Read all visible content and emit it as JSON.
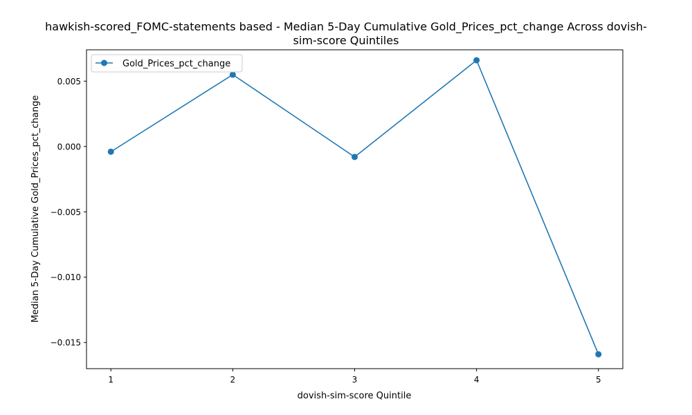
{
  "chart_data": {
    "type": "line",
    "title_lines": [
      "hawkish-scored_FOMC-statements based - Median 5-Day Cumulative Gold_Prices_pct_change Across dovish-",
      "sim-score Quintiles"
    ],
    "xlabel": "dovish-sim-score Quintile",
    "ylabel": "Median 5-Day Cumulative Gold_Prices_pct_change",
    "x": [
      1,
      2,
      3,
      4,
      5
    ],
    "x_ticks": [
      "1",
      "2",
      "3",
      "4",
      "5"
    ],
    "xlim": [
      0.8,
      5.2
    ],
    "ylim": [
      -0.017,
      0.0074
    ],
    "y_ticks": [
      0.005,
      0.0,
      -0.005,
      -0.01,
      -0.015
    ],
    "y_tick_labels": [
      "0.005",
      "0.000",
      "−0.005",
      "−0.010",
      "−0.015"
    ],
    "series": [
      {
        "name": "Gold_Prices_pct_change",
        "color": "#1f77b4",
        "marker": "circle",
        "values": [
          -0.0004,
          0.0055,
          -0.0008,
          0.0066,
          -0.0159
        ]
      }
    ],
    "legend_position": "top-left",
    "grid": false
  }
}
